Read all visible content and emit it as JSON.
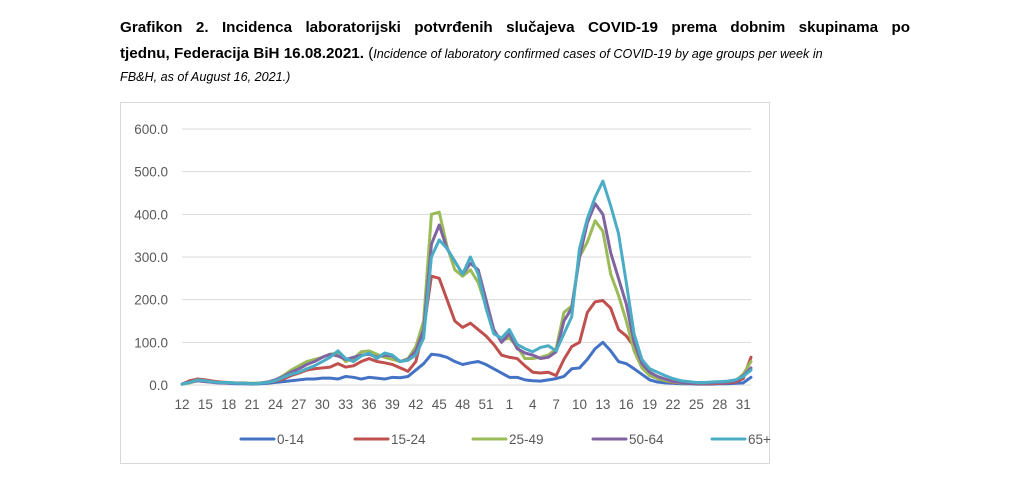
{
  "caption": {
    "line1": "Grafikon 2. Incidenca laboratorijski potvrđenih slučajeva COVID-19 prema dobnim skupinama po",
    "line2_bold": "tjednu, Federacija BiH 16.08.2021.",
    "line2_open": " (",
    "line2_italic": "Incidence of laboratory confirmed cases of COVID-19 by age groups per week in",
    "line3_italic": "FB&H, as of August 16, 2021.)"
  },
  "chart_data": {
    "type": "line",
    "title": "",
    "xlabel": "",
    "ylabel": "",
    "ylim": [
      0,
      600
    ],
    "yticks": [
      "0.0",
      "100.0",
      "200.0",
      "300.0",
      "400.0",
      "500.0",
      "600.0"
    ],
    "xtick_labels": [
      "12",
      "15",
      "18",
      "21",
      "24",
      "27",
      "30",
      "33",
      "36",
      "39",
      "42",
      "45",
      "48",
      "51",
      "1",
      "4",
      "7",
      "10",
      "13",
      "16",
      "19",
      "22",
      "25",
      "28",
      "31"
    ],
    "x": [
      12,
      13,
      14,
      15,
      16,
      17,
      18,
      19,
      20,
      21,
      22,
      23,
      24,
      25,
      26,
      27,
      28,
      29,
      30,
      31,
      32,
      33,
      34,
      35,
      36,
      37,
      38,
      39,
      40,
      41,
      42,
      43,
      44,
      45,
      46,
      47,
      48,
      49,
      50,
      51,
      52,
      53,
      1,
      2,
      3,
      4,
      5,
      6,
      7,
      8,
      9,
      10,
      11,
      12,
      13,
      14,
      15,
      16,
      17,
      18,
      19,
      20,
      21,
      22,
      23,
      24,
      25,
      26,
      27,
      28,
      29,
      30,
      31,
      32
    ],
    "grid": true,
    "legend_position": "bottom",
    "series": [
      {
        "name": "0-14",
        "color": "#4472c4",
        "values": [
          2,
          8,
          14,
          10,
          6,
          5,
          4,
          3,
          3,
          2,
          3,
          4,
          6,
          8,
          10,
          12,
          14,
          14,
          16,
          16,
          14,
          20,
          18,
          14,
          18,
          16,
          14,
          18,
          17,
          20,
          35,
          50,
          72,
          70,
          65,
          55,
          48,
          52,
          55,
          48,
          38,
          28,
          18,
          18,
          12,
          10,
          9,
          12,
          15,
          20,
          38,
          40,
          60,
          85,
          100,
          80,
          55,
          50,
          38,
          25,
          12,
          7,
          5,
          4,
          3,
          3,
          2,
          2,
          2,
          3,
          3,
          4,
          5,
          18
        ]
      },
      {
        "name": "15-24",
        "color": "#c0504d",
        "values": [
          2,
          10,
          14,
          12,
          9,
          7,
          6,
          4,
          4,
          3,
          4,
          6,
          9,
          14,
          22,
          28,
          35,
          38,
          40,
          42,
          50,
          42,
          45,
          55,
          62,
          55,
          52,
          48,
          40,
          32,
          55,
          130,
          255,
          250,
          200,
          150,
          135,
          145,
          130,
          115,
          95,
          70,
          65,
          62,
          45,
          30,
          28,
          30,
          22,
          60,
          90,
          100,
          170,
          195,
          198,
          180,
          130,
          115,
          90,
          60,
          30,
          15,
          10,
          6,
          5,
          4,
          3,
          3,
          3,
          4,
          5,
          7,
          15,
          65
        ]
      },
      {
        "name": "25-49",
        "color": "#9bbb59",
        "values": [
          2,
          5,
          10,
          8,
          7,
          6,
          6,
          5,
          5,
          4,
          5,
          7,
          12,
          22,
          35,
          45,
          55,
          60,
          65,
          72,
          75,
          55,
          62,
          78,
          80,
          72,
          65,
          60,
          55,
          62,
          90,
          150,
          400,
          405,
          325,
          270,
          255,
          270,
          240,
          185,
          125,
          105,
          110,
          90,
          62,
          62,
          65,
          70,
          85,
          170,
          185,
          300,
          335,
          385,
          360,
          260,
          210,
          150,
          80,
          40,
          22,
          15,
          10,
          7,
          5,
          5,
          4,
          4,
          5,
          6,
          7,
          10,
          25,
          55
        ]
      },
      {
        "name": "50-64",
        "color": "#8064a2",
        "values": [
          2,
          7,
          10,
          8,
          6,
          5,
          5,
          4,
          4,
          3,
          4,
          7,
          12,
          20,
          30,
          38,
          48,
          55,
          65,
          72,
          68,
          60,
          65,
          70,
          72,
          65,
          70,
          68,
          55,
          60,
          80,
          130,
          330,
          375,
          320,
          290,
          260,
          285,
          270,
          200,
          130,
          100,
          120,
          85,
          75,
          70,
          62,
          65,
          78,
          150,
          180,
          300,
          380,
          425,
          400,
          310,
          250,
          190,
          100,
          50,
          30,
          20,
          14,
          8,
          6,
          5,
          4,
          4,
          5,
          6,
          7,
          10,
          22,
          40
        ]
      },
      {
        "name": "65+",
        "color": "#4bacc6",
        "values": [
          2,
          6,
          12,
          10,
          7,
          6,
          6,
          4,
          4,
          3,
          4,
          6,
          10,
          18,
          25,
          30,
          38,
          45,
          55,
          65,
          80,
          62,
          55,
          68,
          75,
          62,
          75,
          70,
          55,
          58,
          70,
          110,
          300,
          340,
          320,
          290,
          260,
          300,
          260,
          180,
          120,
          110,
          130,
          95,
          85,
          78,
          88,
          92,
          80,
          120,
          160,
          320,
          390,
          440,
          478,
          420,
          355,
          240,
          120,
          60,
          38,
          30,
          22,
          15,
          10,
          8,
          6,
          6,
          7,
          8,
          9,
          12,
          20,
          35
        ]
      }
    ]
  }
}
